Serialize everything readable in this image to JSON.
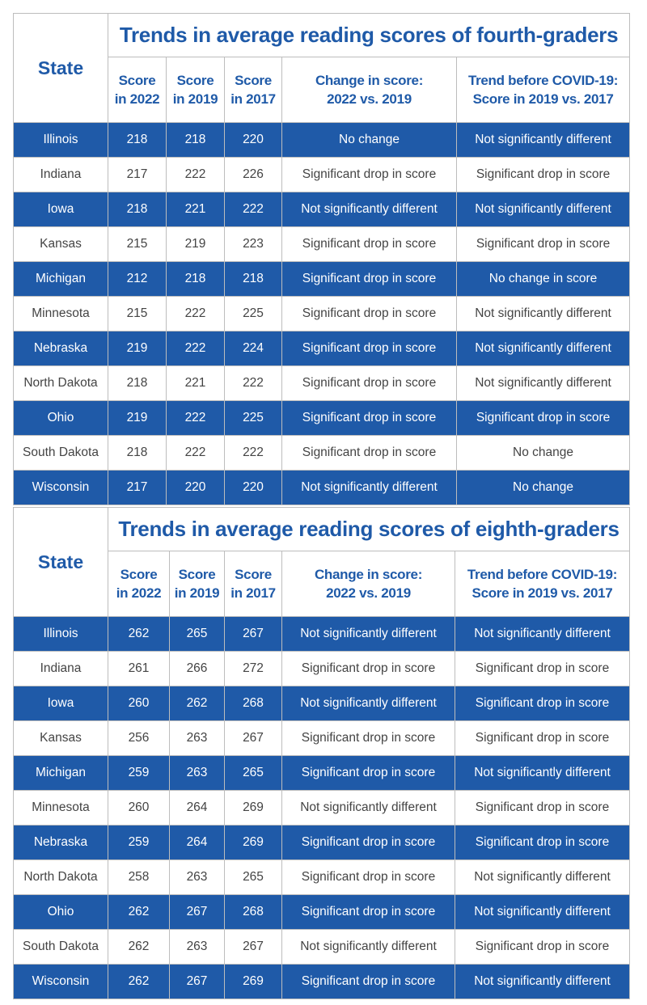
{
  "tables": [
    {
      "title": "Trends in average reading scores of fourth-graders",
      "state_header": "State",
      "col_headers": [
        [
          "Score",
          "in 2022"
        ],
        [
          "Score",
          "in 2019"
        ],
        [
          "Score",
          "in 2017"
        ],
        [
          "Change in score:",
          "2022 vs. 2019"
        ],
        [
          "Trend before COVID-19:",
          "Score in 2019 vs. 2017"
        ]
      ],
      "rows": [
        [
          "Illinois",
          "218",
          "218",
          "220",
          "No change",
          "Not significantly different"
        ],
        [
          "Indiana",
          "217",
          "222",
          "226",
          "Significant drop in score",
          "Significant drop in score"
        ],
        [
          "Iowa",
          "218",
          "221",
          "222",
          "Not significantly different",
          "Not significantly different"
        ],
        [
          "Kansas",
          "215",
          "219",
          "223",
          "Significant drop in score",
          "Significant drop in score"
        ],
        [
          "Michigan",
          "212",
          "218",
          "218",
          "Significant drop in score",
          "No change in score"
        ],
        [
          "Minnesota",
          "215",
          "222",
          "225",
          "Significant drop in score",
          "Not significantly different"
        ],
        [
          "Nebraska",
          "219",
          "222",
          "224",
          "Significant drop in score",
          "Not significantly different"
        ],
        [
          "North Dakota",
          "218",
          "221",
          "222",
          "Significant drop in score",
          "Not significantly different"
        ],
        [
          "Ohio",
          "219",
          "222",
          "225",
          "Significant drop in score",
          "Significant drop in score"
        ],
        [
          "South Dakota",
          "218",
          "222",
          "222",
          "Significant drop in score",
          "No change"
        ],
        [
          "Wisconsin",
          "217",
          "220",
          "220",
          "Not significantly different",
          "No change"
        ]
      ]
    },
    {
      "title": "Trends in average reading scores of eighth-graders",
      "state_header": "State",
      "col_headers": [
        [
          "Score",
          "in 2022"
        ],
        [
          "Score",
          "in 2019"
        ],
        [
          "Score",
          "in 2017"
        ],
        [
          "Change in score:",
          "2022 vs. 2019"
        ],
        [
          "Trend before COVID-19:",
          "Score in 2019 vs. 2017"
        ]
      ],
      "rows": [
        [
          "Illinois",
          "262",
          "265",
          "267",
          "Not significantly different",
          "Not significantly different"
        ],
        [
          "Indiana",
          "261",
          "266",
          "272",
          "Significant drop in score",
          "Significant drop in score"
        ],
        [
          "Iowa",
          "260",
          "262",
          "268",
          "Not significantly different",
          "Significant drop in score"
        ],
        [
          "Kansas",
          "256",
          "263",
          "267",
          "Significant drop in score",
          "Significant drop in score"
        ],
        [
          "Michigan",
          "259",
          "263",
          "265",
          "Significant drop in score",
          "Not significantly different"
        ],
        [
          "Minnesota",
          "260",
          "264",
          "269",
          "Not significantly different",
          "Significant drop in score"
        ],
        [
          "Nebraska",
          "259",
          "264",
          "269",
          "Significant drop in score",
          "Significant drop in score"
        ],
        [
          "North Dakota",
          "258",
          "263",
          "265",
          "Significant drop in score",
          "Not significantly different"
        ],
        [
          "Ohio",
          "262",
          "267",
          "268",
          "Significant drop in score",
          "Not significantly different"
        ],
        [
          "South Dakota",
          "262",
          "263",
          "267",
          "Not significantly different",
          "Significant drop in score"
        ],
        [
          "Wisconsin",
          "262",
          "267",
          "269",
          "Significant drop in score",
          "Not significantly different"
        ]
      ]
    }
  ],
  "colors": {
    "header_text": "#1f5aa8",
    "highlight_row": "#1f5aa8",
    "body_text": "#444444",
    "border": "#bdbdbd"
  },
  "chart_data": [
    {
      "type": "table",
      "title": "Trends in average reading scores of fourth-graders",
      "columns": [
        "State",
        "Score in 2022",
        "Score in 2019",
        "Score in 2017",
        "Change in score: 2022 vs. 2019",
        "Trend before COVID-19: Score in 2019 vs. 2017"
      ],
      "categories": [
        "Illinois",
        "Indiana",
        "Iowa",
        "Kansas",
        "Michigan",
        "Minnesota",
        "Nebraska",
        "North Dakota",
        "Ohio",
        "South Dakota",
        "Wisconsin"
      ],
      "series": [
        {
          "name": "Score in 2022",
          "values": [
            218,
            217,
            218,
            215,
            212,
            215,
            219,
            218,
            219,
            218,
            217
          ]
        },
        {
          "name": "Score in 2019",
          "values": [
            218,
            222,
            221,
            219,
            218,
            222,
            222,
            221,
            222,
            222,
            220
          ]
        },
        {
          "name": "Score in 2017",
          "values": [
            220,
            226,
            222,
            223,
            218,
            225,
            224,
            222,
            225,
            222,
            220
          ]
        }
      ]
    },
    {
      "type": "table",
      "title": "Trends in average reading scores of eighth-graders",
      "columns": [
        "State",
        "Score in 2022",
        "Score in 2019",
        "Score in 2017",
        "Change in score: 2022 vs. 2019",
        "Trend before COVID-19: Score in 2019 vs. 2017"
      ],
      "categories": [
        "Illinois",
        "Indiana",
        "Iowa",
        "Kansas",
        "Michigan",
        "Minnesota",
        "Nebraska",
        "North Dakota",
        "Ohio",
        "South Dakota",
        "Wisconsin"
      ],
      "series": [
        {
          "name": "Score in 2022",
          "values": [
            262,
            261,
            260,
            256,
            259,
            260,
            259,
            258,
            262,
            262,
            262
          ]
        },
        {
          "name": "Score in 2019",
          "values": [
            265,
            266,
            262,
            263,
            263,
            264,
            264,
            263,
            267,
            263,
            267
          ]
        },
        {
          "name": "Score in 2017",
          "values": [
            267,
            272,
            268,
            267,
            265,
            269,
            269,
            265,
            268,
            267,
            269
          ]
        }
      ]
    }
  ]
}
